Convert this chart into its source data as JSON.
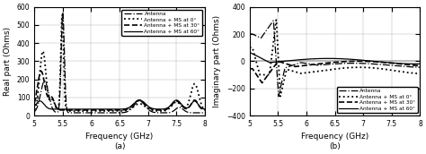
{
  "figsize": [
    4.74,
    1.72
  ],
  "dpi": 100,
  "xlim": [
    5,
    8
  ],
  "xticks": [
    5,
    5.5,
    6,
    6.5,
    7,
    7.5,
    8
  ],
  "xlabel": "Frequency (GHz)",
  "subplot_a": {
    "ylabel": "Real part (Ohms)",
    "ylim": [
      0,
      600
    ],
    "yticks": [
      0,
      100,
      200,
      300,
      400,
      500,
      600
    ],
    "label_a": "(a)"
  },
  "subplot_b": {
    "ylabel": "Imaginary part (Ohms)",
    "ylim": [
      -400,
      400
    ],
    "yticks": [
      -400,
      -200,
      0,
      200,
      400
    ],
    "label_b": "(b)"
  },
  "legend_labels": [
    "Antenna",
    "Antenna + MS at 0°",
    "Antenna + MS at 30°",
    "Antenna + MS at 60°"
  ],
  "line_styles": [
    {
      "ls": "-.",
      "lw": 0.9,
      "color": "black"
    },
    {
      "ls": ":",
      "lw": 1.3,
      "color": "black"
    },
    {
      "ls": "--",
      "lw": 1.2,
      "color": "black"
    },
    {
      "ls": "-",
      "lw": 0.9,
      "color": "black"
    }
  ]
}
